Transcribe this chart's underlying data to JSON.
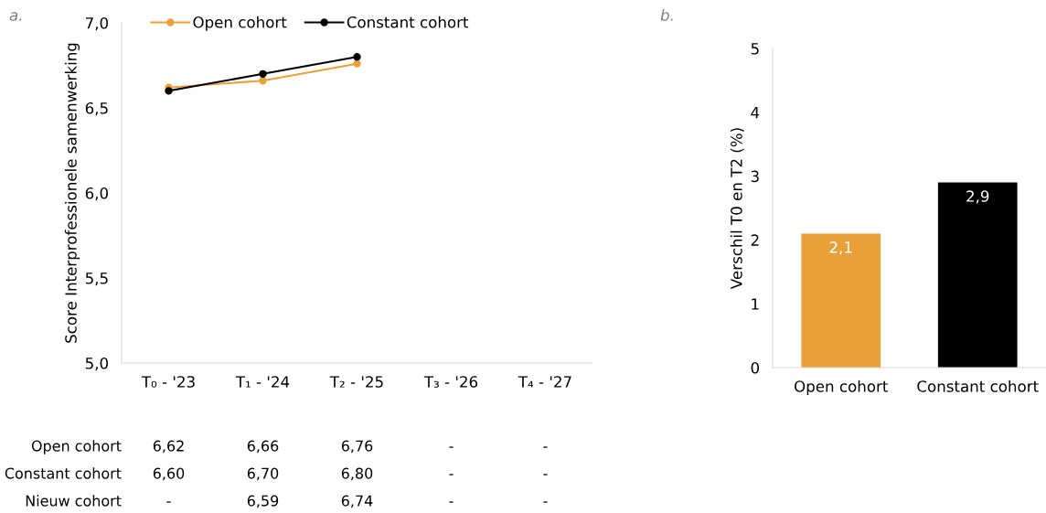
{
  "chart_data": [
    {
      "type": "line",
      "annotations": [
        "a.",
        "Nieuw cohort",
        "-",
        "6,59",
        "6,74",
        "-",
        "-"
      ],
      "ylabel": "Score Interprofessionele samenwerking",
      "categories": [
        "T₀ - '23",
        "T₁ - '24",
        "T₂ - '25",
        "T₃ - '26",
        "T₄ - '27"
      ],
      "series": [
        {
          "name": "Open cohort",
          "color": "#e8a03a",
          "values": [
            6.62,
            6.66,
            6.76,
            null,
            null
          ],
          "value_labels": [
            "6,62",
            "6,66",
            "6,76",
            "-",
            "-"
          ]
        },
        {
          "name": "Constant cohort",
          "color": "#000000",
          "values": [
            6.6,
            6.7,
            6.8,
            null,
            null
          ],
          "value_labels": [
            "6,60",
            "6,70",
            "6,80",
            "-",
            "-"
          ]
        }
      ],
      "ylim": [
        5.0,
        7.0
      ],
      "yticks": [
        {
          "value": 5.0,
          "label": "5,0"
        },
        {
          "value": 5.5,
          "label": "5,5"
        },
        {
          "value": 6.0,
          "label": "6,0"
        },
        {
          "value": 6.5,
          "label": "6,5"
        },
        {
          "value": 7.0,
          "label": "7,0"
        }
      ],
      "marker": "circle",
      "line_style": "solid",
      "legend": "top",
      "grid": false
    },
    {
      "type": "bar",
      "annotations": [
        "b."
      ],
      "ylabel": "Verschil T0 en T2 (%)",
      "categories": [
        "Open cohort",
        "Constant cohort"
      ],
      "values": [
        2.1,
        2.9
      ],
      "colors": [
        "#e8a03a",
        "#000000"
      ],
      "value_labels": [
        "2,1",
        "2,9"
      ],
      "ylim": [
        0,
        5
      ],
      "yticks": [
        0,
        1,
        2,
        3,
        4,
        5
      ],
      "grid": false
    }
  ]
}
